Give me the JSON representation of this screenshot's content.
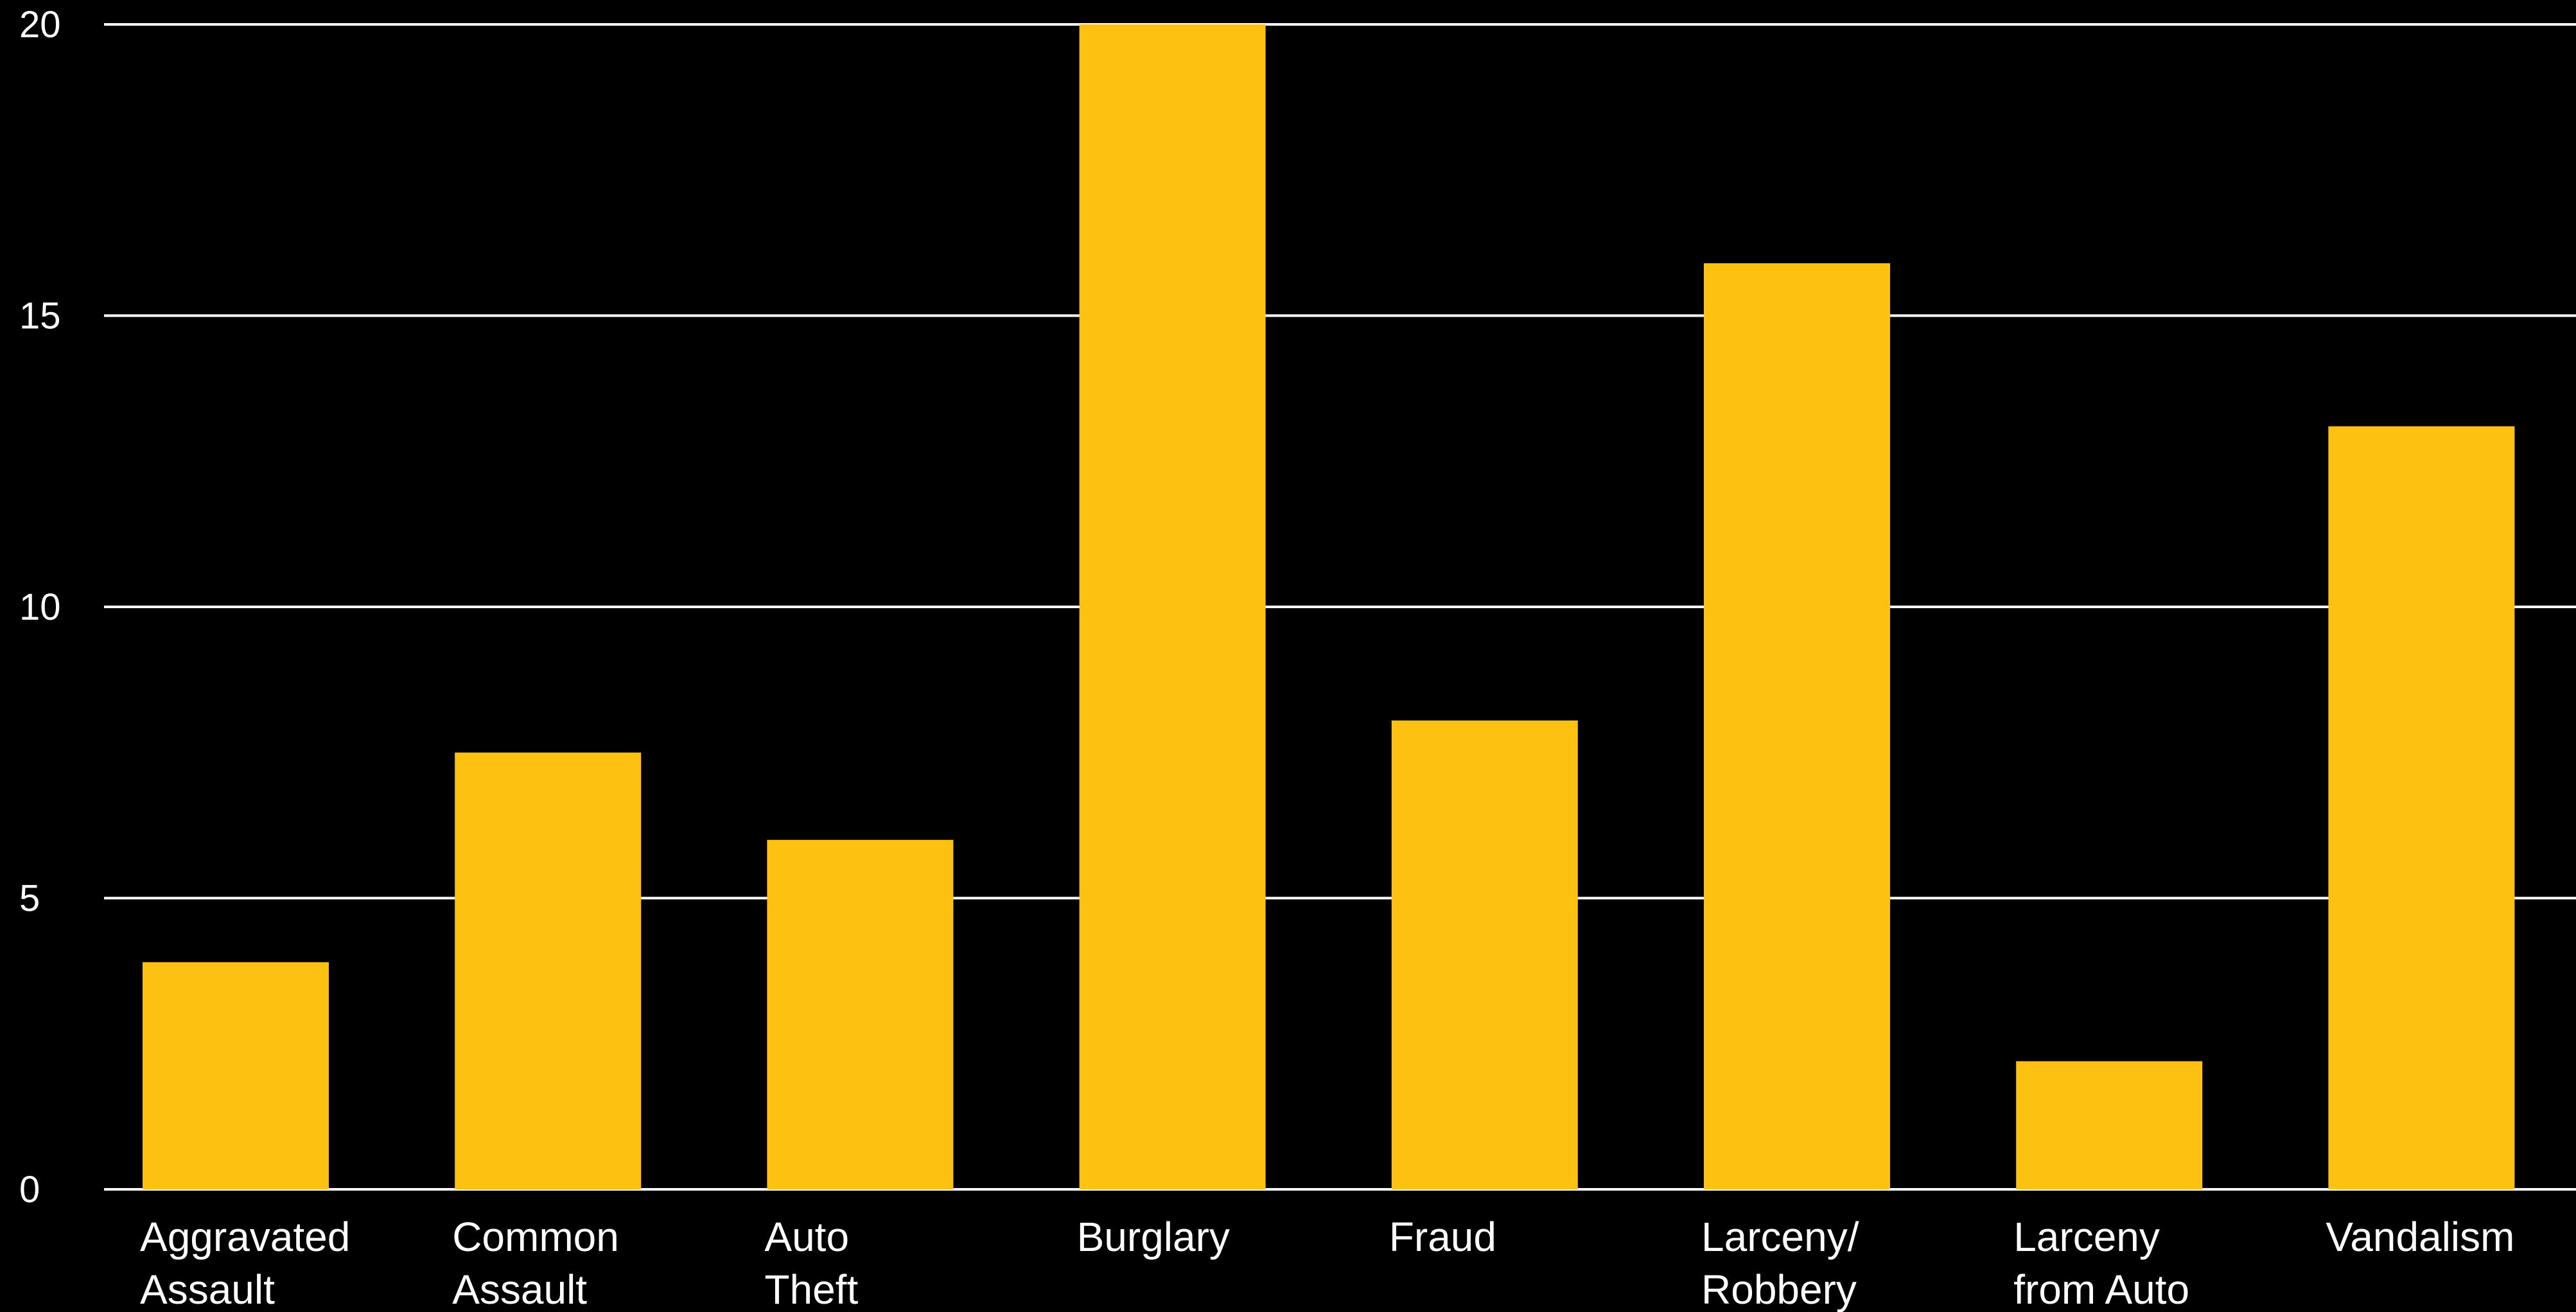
{
  "chart_data": {
    "type": "bar",
    "categories": [
      "Aggravated Assault",
      "Common Assault",
      "Auto Theft",
      "Burglary",
      "Fraud",
      "Larceny/ Robbery",
      "Larceny from Auto",
      "Vandalism"
    ],
    "category_label_lines": [
      [
        "Aggravated",
        "Assault"
      ],
      [
        "Common",
        "Assault"
      ],
      [
        "Auto",
        "Theft"
      ],
      [
        "Burglary"
      ],
      [
        "Fraud"
      ],
      [
        "Larceny/",
        "Robbery"
      ],
      [
        "Larceny",
        "from Auto"
      ],
      [
        "Vandalism"
      ]
    ],
    "values": [
      3.9,
      7.5,
      6.0,
      20.0,
      8.05,
      15.9,
      2.2,
      13.1
    ],
    "yticks": [
      "0",
      "5",
      "10",
      "15",
      "20"
    ],
    "ylim": [
      0,
      20
    ],
    "grid": true,
    "bar_color": "#FDC111",
    "background_color": "#000000",
    "text_color": "#FFFFFF",
    "title": "",
    "xlabel": "",
    "ylabel": ""
  }
}
